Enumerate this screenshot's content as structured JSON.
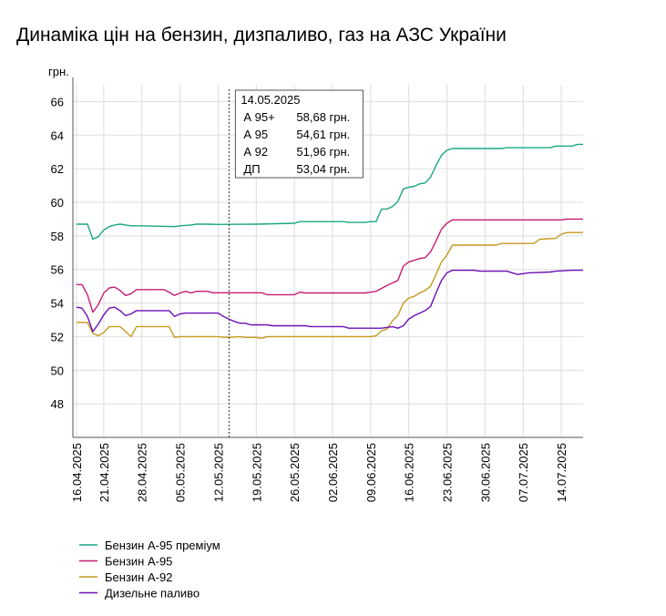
{
  "chart_data": {
    "type": "line",
    "title": "Динаміка цін на бензин, дизпаливо, газ на АЗС України",
    "ylabel": "грн.",
    "xlabel": "",
    "ylim": [
      46,
      67
    ],
    "yticks": [
      48,
      50,
      52,
      54,
      56,
      58,
      60,
      62,
      64,
      66
    ],
    "xlim": [
      "2025-04-16",
      "2025-07-18"
    ],
    "x_tick_labels": [
      "16.04.2025",
      "21.04.2025",
      "28.04.2025",
      "05.05.2025",
      "12.05.2025",
      "19.05.2025",
      "26.05.2025",
      "02.06.2025",
      "09.06.2025",
      "16.06.2025",
      "23.06.2025",
      "30.06.2025",
      "07.07.2025",
      "14.07.2025"
    ],
    "x_tick_dates": [
      "2025-04-16",
      "2025-04-21",
      "2025-04-28",
      "2025-05-05",
      "2025-05-12",
      "2025-05-19",
      "2025-05-26",
      "2025-06-02",
      "2025-06-09",
      "2025-06-16",
      "2025-06-23",
      "2025-06-30",
      "2025-07-07",
      "2025-07-14"
    ],
    "grid": true,
    "legend_position": "bottom-left",
    "series": [
      {
        "name": "Бензин А-95 преміум",
        "color": "#1ba784",
        "points": [
          [
            "2025-04-16",
            58.7
          ],
          [
            "2025-04-17",
            58.7
          ],
          [
            "2025-04-18",
            58.7
          ],
          [
            "2025-04-19",
            57.8
          ],
          [
            "2025-04-20",
            57.95
          ],
          [
            "2025-04-21",
            58.35
          ],
          [
            "2025-04-22",
            58.55
          ],
          [
            "2025-04-23",
            58.65
          ],
          [
            "2025-04-24",
            58.7
          ],
          [
            "2025-04-25",
            58.65
          ],
          [
            "2025-04-26",
            58.6
          ],
          [
            "2025-04-28",
            58.6
          ],
          [
            "2025-05-04",
            58.55
          ],
          [
            "2025-05-05",
            58.6
          ],
          [
            "2025-05-07",
            58.65
          ],
          [
            "2025-05-08",
            58.7
          ],
          [
            "2025-05-10",
            58.7
          ],
          [
            "2025-05-12",
            58.68
          ],
          [
            "2025-05-19",
            58.7
          ],
          [
            "2025-05-26",
            58.75
          ],
          [
            "2025-05-27",
            58.85
          ],
          [
            "2025-06-04",
            58.85
          ],
          [
            "2025-06-05",
            58.8
          ],
          [
            "2025-06-08",
            58.8
          ],
          [
            "2025-06-09",
            58.85
          ],
          [
            "2025-06-10",
            58.85
          ],
          [
            "2025-06-11",
            59.6
          ],
          [
            "2025-06-12",
            59.6
          ],
          [
            "2025-06-13",
            59.75
          ],
          [
            "2025-06-14",
            60.05
          ],
          [
            "2025-06-15",
            60.8
          ],
          [
            "2025-06-16",
            60.9
          ],
          [
            "2025-06-17",
            60.95
          ],
          [
            "2025-06-18",
            61.1
          ],
          [
            "2025-06-19",
            61.15
          ],
          [
            "2025-06-20",
            61.5
          ],
          [
            "2025-06-21",
            62.2
          ],
          [
            "2025-06-22",
            62.8
          ],
          [
            "2025-06-23",
            63.1
          ],
          [
            "2025-06-24",
            63.2
          ],
          [
            "2025-07-03",
            63.2
          ],
          [
            "2025-07-04",
            63.25
          ],
          [
            "2025-07-12",
            63.25
          ],
          [
            "2025-07-13",
            63.35
          ],
          [
            "2025-07-16",
            63.35
          ],
          [
            "2025-07-17",
            63.45
          ],
          [
            "2025-07-18",
            63.45
          ]
        ]
      },
      {
        "name": "Бензин А-95",
        "color": "#c71c73",
        "points": [
          [
            "2025-04-16",
            55.1
          ],
          [
            "2025-04-17",
            55.1
          ],
          [
            "2025-04-18",
            54.5
          ],
          [
            "2025-04-19",
            53.45
          ],
          [
            "2025-04-20",
            53.9
          ],
          [
            "2025-04-21",
            54.6
          ],
          [
            "2025-04-22",
            54.9
          ],
          [
            "2025-04-23",
            54.95
          ],
          [
            "2025-04-24",
            54.75
          ],
          [
            "2025-04-25",
            54.45
          ],
          [
            "2025-04-26",
            54.55
          ],
          [
            "2025-04-27",
            54.8
          ],
          [
            "2025-04-28",
            54.8
          ],
          [
            "2025-05-02",
            54.8
          ],
          [
            "2025-05-03",
            54.65
          ],
          [
            "2025-05-04",
            54.45
          ],
          [
            "2025-05-05",
            54.6
          ],
          [
            "2025-05-06",
            54.7
          ],
          [
            "2025-05-07",
            54.6
          ],
          [
            "2025-05-08",
            54.7
          ],
          [
            "2025-05-10",
            54.7
          ],
          [
            "2025-05-11",
            54.61
          ],
          [
            "2025-05-20",
            54.61
          ],
          [
            "2025-05-21",
            54.5
          ],
          [
            "2025-05-26",
            54.5
          ],
          [
            "2025-05-27",
            54.65
          ],
          [
            "2025-05-28",
            54.6
          ],
          [
            "2025-06-08",
            54.6
          ],
          [
            "2025-06-09",
            54.65
          ],
          [
            "2025-06-10",
            54.7
          ],
          [
            "2025-06-12",
            55.05
          ],
          [
            "2025-06-14",
            55.35
          ],
          [
            "2025-06-15",
            56.2
          ],
          [
            "2025-06-16",
            56.45
          ],
          [
            "2025-06-17",
            56.55
          ],
          [
            "2025-06-18",
            56.65
          ],
          [
            "2025-06-19",
            56.7
          ],
          [
            "2025-06-20",
            57.05
          ],
          [
            "2025-06-21",
            57.7
          ],
          [
            "2025-06-22",
            58.4
          ],
          [
            "2025-06-23",
            58.75
          ],
          [
            "2025-06-24",
            58.95
          ],
          [
            "2025-07-14",
            58.95
          ],
          [
            "2025-07-15",
            59.0
          ],
          [
            "2025-07-18",
            59.0
          ]
        ]
      },
      {
        "name": "Бензин А-92",
        "color": "#c49a1e",
        "points": [
          [
            "2025-04-16",
            52.85
          ],
          [
            "2025-04-18",
            52.85
          ],
          [
            "2025-04-19",
            52.2
          ],
          [
            "2025-04-20",
            52.05
          ],
          [
            "2025-04-21",
            52.25
          ],
          [
            "2025-04-22",
            52.6
          ],
          [
            "2025-04-24",
            52.6
          ],
          [
            "2025-04-25",
            52.3
          ],
          [
            "2025-04-26",
            52.0
          ],
          [
            "2025-04-27",
            52.6
          ],
          [
            "2025-04-28",
            52.6
          ],
          [
            "2025-05-03",
            52.6
          ],
          [
            "2025-05-04",
            51.95
          ],
          [
            "2025-05-05",
            52.0
          ],
          [
            "2025-05-12",
            52.0
          ],
          [
            "2025-05-13",
            51.96
          ],
          [
            "2025-05-14",
            51.96
          ],
          [
            "2025-05-16",
            52.0
          ],
          [
            "2025-05-17",
            51.95
          ],
          [
            "2025-05-19",
            51.95
          ],
          [
            "2025-05-20",
            51.9
          ],
          [
            "2025-05-21",
            52.0
          ],
          [
            "2025-06-09",
            52.0
          ],
          [
            "2025-06-10",
            52.05
          ],
          [
            "2025-06-11",
            52.35
          ],
          [
            "2025-06-12",
            52.45
          ],
          [
            "2025-06-13",
            52.95
          ],
          [
            "2025-06-14",
            53.25
          ],
          [
            "2025-06-15",
            54.0
          ],
          [
            "2025-06-16",
            54.3
          ],
          [
            "2025-06-17",
            54.4
          ],
          [
            "2025-06-18",
            54.6
          ],
          [
            "2025-06-19",
            54.75
          ],
          [
            "2025-06-20",
            55.0
          ],
          [
            "2025-06-21",
            55.7
          ],
          [
            "2025-06-22",
            56.45
          ],
          [
            "2025-06-23",
            56.85
          ],
          [
            "2025-06-24",
            57.45
          ],
          [
            "2025-07-02",
            57.45
          ],
          [
            "2025-07-03",
            57.55
          ],
          [
            "2025-07-09",
            57.55
          ],
          [
            "2025-07-10",
            57.8
          ],
          [
            "2025-07-13",
            57.85
          ],
          [
            "2025-07-14",
            58.1
          ],
          [
            "2025-07-15",
            58.2
          ],
          [
            "2025-07-18",
            58.2
          ]
        ]
      },
      {
        "name": "Дизельне паливо",
        "color": "#6d10b6",
        "points": [
          [
            "2025-04-16",
            53.75
          ],
          [
            "2025-04-17",
            53.7
          ],
          [
            "2025-04-18",
            53.2
          ],
          [
            "2025-04-19",
            52.3
          ],
          [
            "2025-04-20",
            52.75
          ],
          [
            "2025-04-21",
            53.3
          ],
          [
            "2025-04-22",
            53.7
          ],
          [
            "2025-04-23",
            53.75
          ],
          [
            "2025-04-24",
            53.55
          ],
          [
            "2025-04-25",
            53.25
          ],
          [
            "2025-04-26",
            53.35
          ],
          [
            "2025-04-27",
            53.55
          ],
          [
            "2025-04-28",
            53.55
          ],
          [
            "2025-05-03",
            53.55
          ],
          [
            "2025-05-04",
            53.2
          ],
          [
            "2025-05-05",
            53.35
          ],
          [
            "2025-05-06",
            53.4
          ],
          [
            "2025-05-12",
            53.4
          ],
          [
            "2025-05-13",
            53.2
          ],
          [
            "2025-05-14",
            53.04
          ],
          [
            "2025-05-15",
            52.9
          ],
          [
            "2025-05-16",
            52.8
          ],
          [
            "2025-05-17",
            52.8
          ],
          [
            "2025-05-18",
            52.7
          ],
          [
            "2025-05-21",
            52.7
          ],
          [
            "2025-05-22",
            52.65
          ],
          [
            "2025-05-28",
            52.65
          ],
          [
            "2025-05-29",
            52.6
          ],
          [
            "2025-06-04",
            52.6
          ],
          [
            "2025-06-05",
            52.5
          ],
          [
            "2025-06-11",
            52.5
          ],
          [
            "2025-06-12",
            52.55
          ],
          [
            "2025-06-13",
            52.6
          ],
          [
            "2025-06-14",
            52.5
          ],
          [
            "2025-06-15",
            52.65
          ],
          [
            "2025-06-16",
            53.05
          ],
          [
            "2025-06-17",
            53.25
          ],
          [
            "2025-06-18",
            53.4
          ],
          [
            "2025-06-19",
            53.55
          ],
          [
            "2025-06-20",
            53.8
          ],
          [
            "2025-06-21",
            54.6
          ],
          [
            "2025-06-22",
            55.35
          ],
          [
            "2025-06-23",
            55.8
          ],
          [
            "2025-06-24",
            55.95
          ],
          [
            "2025-06-28",
            55.95
          ],
          [
            "2025-06-29",
            55.9
          ],
          [
            "2025-07-04",
            55.9
          ],
          [
            "2025-07-05",
            55.8
          ],
          [
            "2025-07-06",
            55.7
          ],
          [
            "2025-07-07",
            55.75
          ],
          [
            "2025-07-08",
            55.8
          ],
          [
            "2025-07-12",
            55.85
          ],
          [
            "2025-07-13",
            55.9
          ],
          [
            "2025-07-16",
            55.95
          ],
          [
            "2025-07-18",
            55.95
          ]
        ]
      }
    ],
    "tooltip": {
      "date": "2025-05-14",
      "date_label": "14.05.2025",
      "rows": [
        {
          "label": "А 95+",
          "value": "58,68 грн."
        },
        {
          "label": "А 95",
          "value": "54,61 грн."
        },
        {
          "label": "А 92",
          "value": "51,96 грн."
        },
        {
          "label": "ДП",
          "value": "53,04 грн."
        }
      ]
    }
  }
}
